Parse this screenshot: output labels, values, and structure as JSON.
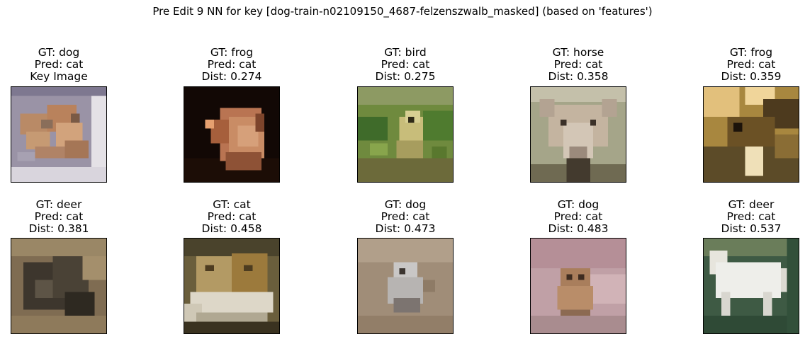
{
  "figure": {
    "title": "Pre Edit 9 NN for key [dog-train-n02109150_4687-felzenszwalb_masked] (based on 'features')"
  },
  "panels": [
    {
      "gt": "GT: dog",
      "pred": "Pred: cat",
      "extra": "Key Image",
      "subject": "key-image-dogs-on-rug",
      "colors": {
        "bg": "#8f8aa0",
        "fg": "#b98a66"
      }
    },
    {
      "gt": "GT: frog",
      "pred": "Pred: cat",
      "extra": "Dist: 0.274",
      "subject": "neighbor-image-frog-on-dark",
      "colors": {
        "bg": "#120805",
        "fg": "#c4825a"
      }
    },
    {
      "gt": "GT: bird",
      "pred": "Pred: cat",
      "extra": "Dist: 0.275",
      "subject": "neighbor-image-bird-in-grass",
      "colors": {
        "bg": "#6f8a3e",
        "fg": "#c8bd7a"
      }
    },
    {
      "gt": "GT: horse",
      "pred": "Pred: cat",
      "extra": "Dist: 0.358",
      "subject": "neighbor-image-horse-face",
      "colors": {
        "bg": "#a5a589",
        "fg": "#bba894"
      }
    },
    {
      "gt": "GT: frog",
      "pred": "Pred: cat",
      "extra": "Dist: 0.359",
      "subject": "neighbor-image-frog-brown",
      "colors": {
        "bg": "#a8873f",
        "fg": "#e2c07c"
      }
    },
    {
      "gt": "GT: deer",
      "pred": "Pred: cat",
      "extra": "Dist: 0.381",
      "subject": "neighbor-image-deer-dark",
      "colors": {
        "bg": "#7f6c52",
        "fg": "#3d362d"
      }
    },
    {
      "gt": "GT: cat",
      "pred": "Pred: cat",
      "extra": "Dist: 0.458",
      "subject": "neighbor-image-cats-in-bed",
      "colors": {
        "bg": "#6a5e3c",
        "fg": "#ddd7c8"
      }
    },
    {
      "gt": "GT: dog",
      "pred": "Pred: cat",
      "extra": "Dist: 0.473",
      "subject": "neighbor-image-dog-small-gray",
      "colors": {
        "bg": "#a08d78",
        "fg": "#c9c7c6"
      }
    },
    {
      "gt": "GT: dog",
      "pred": "Pred: cat",
      "extra": "Dist: 0.483",
      "subject": "neighbor-image-puppy-pink",
      "colors": {
        "bg": "#c0a0a6",
        "fg": "#a97e5c"
      }
    },
    {
      "gt": "GT: deer",
      "pred": "Pred: cat",
      "extra": "Dist: 0.537",
      "subject": "neighbor-image-white-horse",
      "colors": {
        "bg": "#3e5a44",
        "fg": "#eeeeea"
      }
    }
  ]
}
